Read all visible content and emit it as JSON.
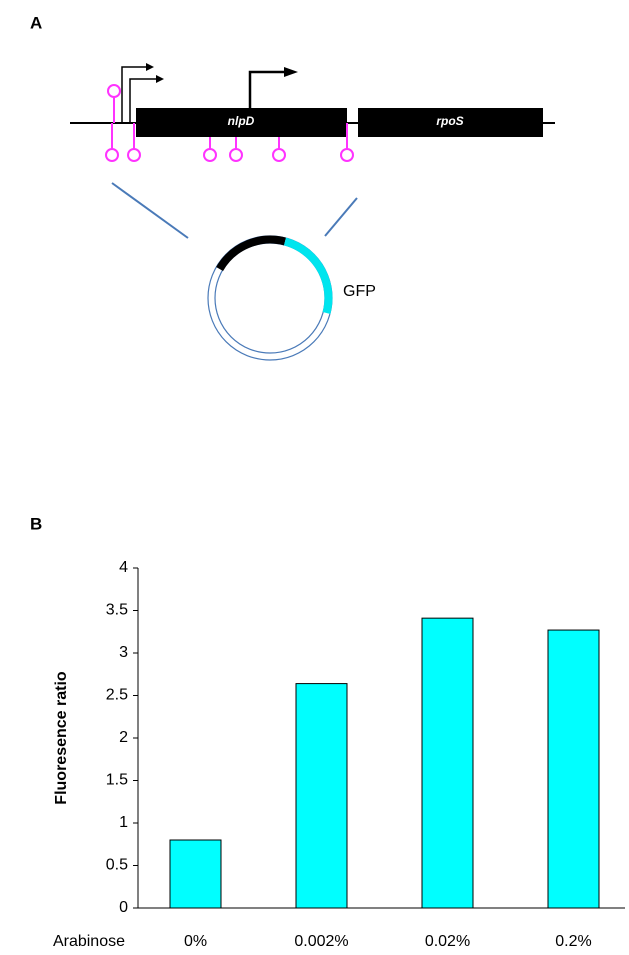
{
  "diagram": {
    "panel_label": "A",
    "genes": [
      "nlpD",
      "rpoS"
    ],
    "insert_label": "GFP"
  },
  "chart_data": {
    "panel_label": "B",
    "type": "bar",
    "x_label": "Arabinose",
    "y_label": "Fluoresence ratio",
    "categories": [
      "0%",
      "0.002%",
      "0.02%",
      "0.2%"
    ],
    "values": [
      0.8,
      2.64,
      3.41,
      3.27
    ],
    "color": "#00ffff",
    "ylim": [
      0,
      4
    ],
    "yticks": [
      0,
      0.5,
      1,
      1.5,
      2,
      2.5,
      3,
      3.5,
      4
    ],
    "grid": false
  }
}
